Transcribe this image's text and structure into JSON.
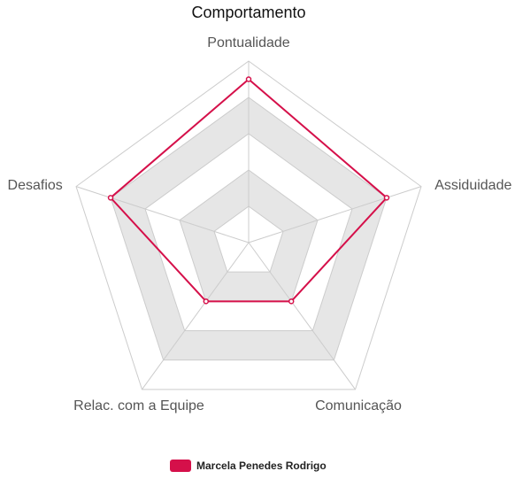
{
  "chart_data": {
    "type": "radar",
    "title": "Comportamento",
    "categories": [
      "Pontualidade",
      "Assiduidade",
      "Comunicação",
      "Relac. com a Equipe",
      "Desafios"
    ],
    "rlim": [
      0,
      10
    ],
    "series": [
      {
        "name": "Marcela Penedes Rodrigo",
        "values": [
          9,
          8,
          4,
          4,
          8
        ],
        "color": "#d5104a"
      }
    ],
    "grid": true,
    "legend": "bottom",
    "band_colors": [
      "#ffffff",
      "#e6e6e6"
    ]
  }
}
